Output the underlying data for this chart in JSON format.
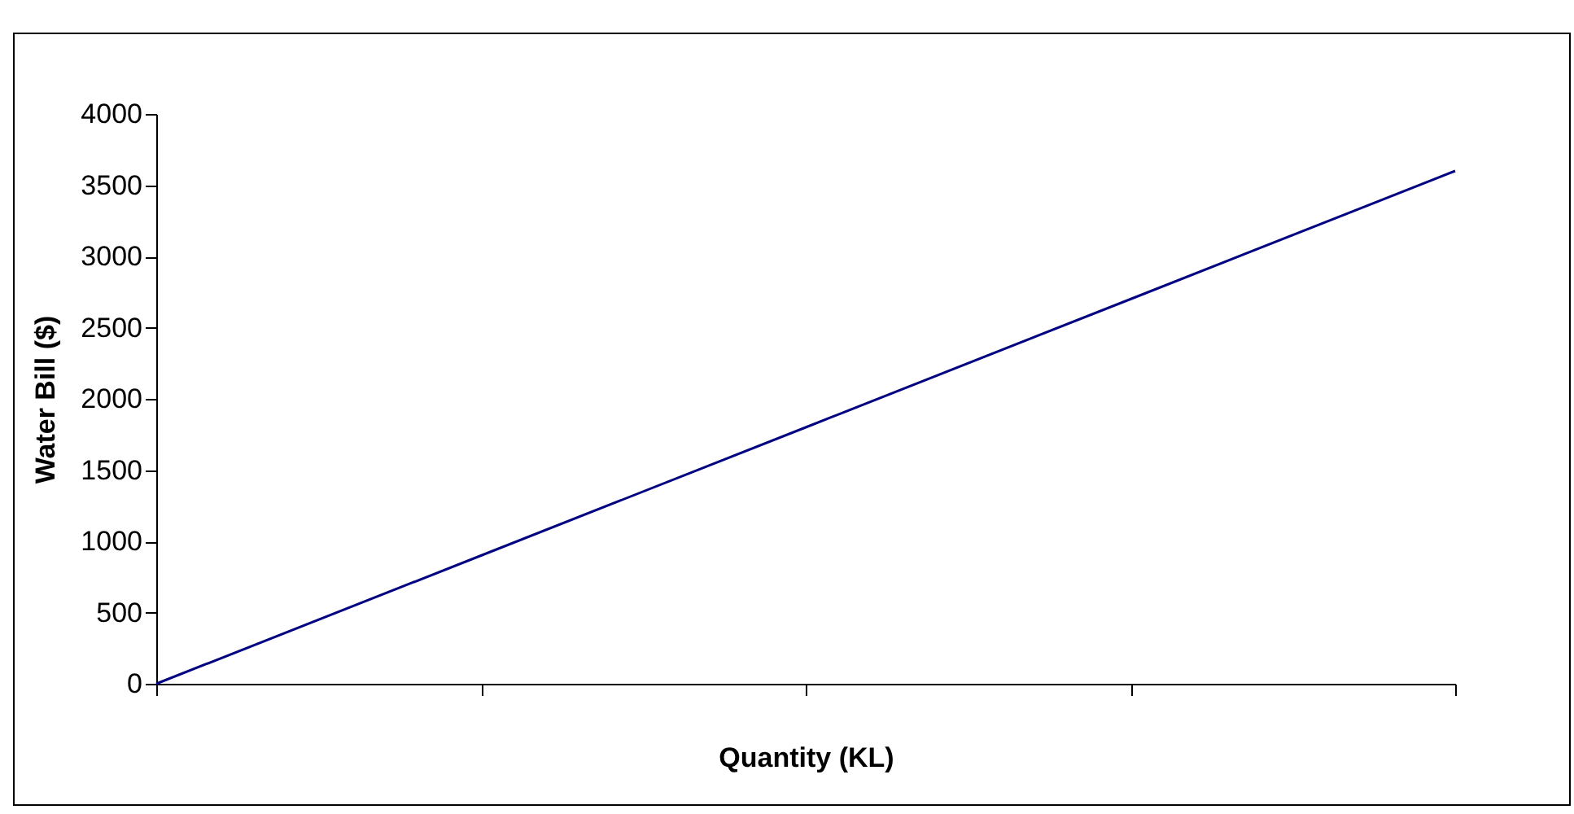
{
  "chart_data": {
    "type": "line",
    "xlabel": "Quantity (KL)",
    "ylabel": "Water Bill ($)",
    "categories": [
      null,
      null,
      null,
      null,
      null
    ],
    "series": [
      {
        "color": "#000080",
        "values": [
          0,
          900,
          1800,
          2700,
          3600
        ]
      }
    ],
    "ylim": [
      0,
      4000
    ],
    "yticks": [
      0,
      500,
      1000,
      1500,
      2000,
      2500,
      3000,
      3500,
      4000
    ],
    "grid": false,
    "legend": false,
    "marker": "none",
    "line_style": "solid",
    "tick_labels": "y"
  }
}
